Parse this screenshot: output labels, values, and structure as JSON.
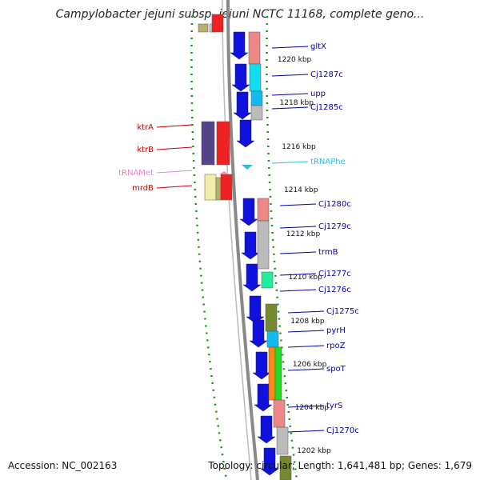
{
  "title": "Campylobacter jejuni subsp. jejuni NCTC 11168, complete geno...",
  "footer": {
    "accession": "Accession: NC_002163",
    "summary": "Topology: circular; Length: 1,641,481 bp; Genes: 1,679"
  },
  "colors": {
    "forward_label": "#cc0000",
    "reverse_label": "#0000aa",
    "trna_label": "#dd88cc",
    "trna_phe_label": "#33bbdd",
    "backbone": "#888888",
    "tick": "#119911"
  },
  "kbp_ticks": [
    "1220 kbp",
    "1218 kbp",
    "1216 kbp",
    "1214 kbp",
    "1212 kbp",
    "1210 kbp",
    "1208 kbp",
    "1206 kbp",
    "1204 kbp",
    "1202 kbp"
  ],
  "genes_left": [
    {
      "name": "ktrA",
      "type": "cds"
    },
    {
      "name": "ktrB",
      "type": "cds"
    },
    {
      "name": "tRNAMet",
      "type": "trna"
    },
    {
      "name": "mrdB",
      "type": "cds"
    }
  ],
  "genes_right": [
    {
      "name": "gltX"
    },
    {
      "name": "Cj1287c"
    },
    {
      "name": "upp"
    },
    {
      "name": "Cj1285c"
    },
    {
      "name": "tRNAPhe",
      "type": "trna"
    },
    {
      "name": "Cj1280c"
    },
    {
      "name": "Cj1279c"
    },
    {
      "name": "trmB"
    },
    {
      "name": "Cj1277c"
    },
    {
      "name": "Cj1276c"
    },
    {
      "name": "Cj1275c"
    },
    {
      "name": "pyrH"
    },
    {
      "name": "rpoZ"
    },
    {
      "name": "spoT"
    },
    {
      "name": "tyrS"
    },
    {
      "name": "Cj1270c"
    }
  ]
}
